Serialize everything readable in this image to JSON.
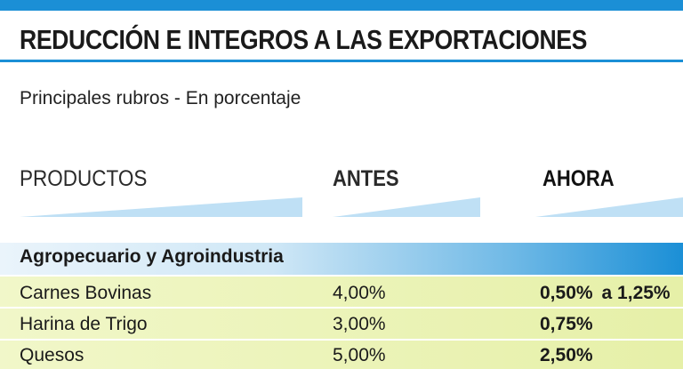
{
  "header": {
    "title": "REDUCCIÓN E INTEGROS A LAS EXPORTACIONES",
    "subtitle": "Principales rubros - En porcentaje"
  },
  "columns": {
    "products": "PRODUCTOS",
    "antes": "ANTES",
    "ahora": "AHORA"
  },
  "section": {
    "label": "Agropecuario y Agroindustria"
  },
  "rows": [
    {
      "name": "Carnes Bovinas",
      "antes": "4,00%",
      "ahora": "0,50%",
      "ahora_extra": "a 1,25%"
    },
    {
      "name": "Harina de Trigo",
      "antes": "3,00%",
      "ahora": "0,75%"
    },
    {
      "name": "Quesos",
      "antes": "5,00%",
      "ahora": "2,50%"
    }
  ],
  "colors": {
    "accent_blue": "#1b8fd6",
    "row_green": "#e6f0a8",
    "wedge_blue": "#bfe0f5"
  }
}
